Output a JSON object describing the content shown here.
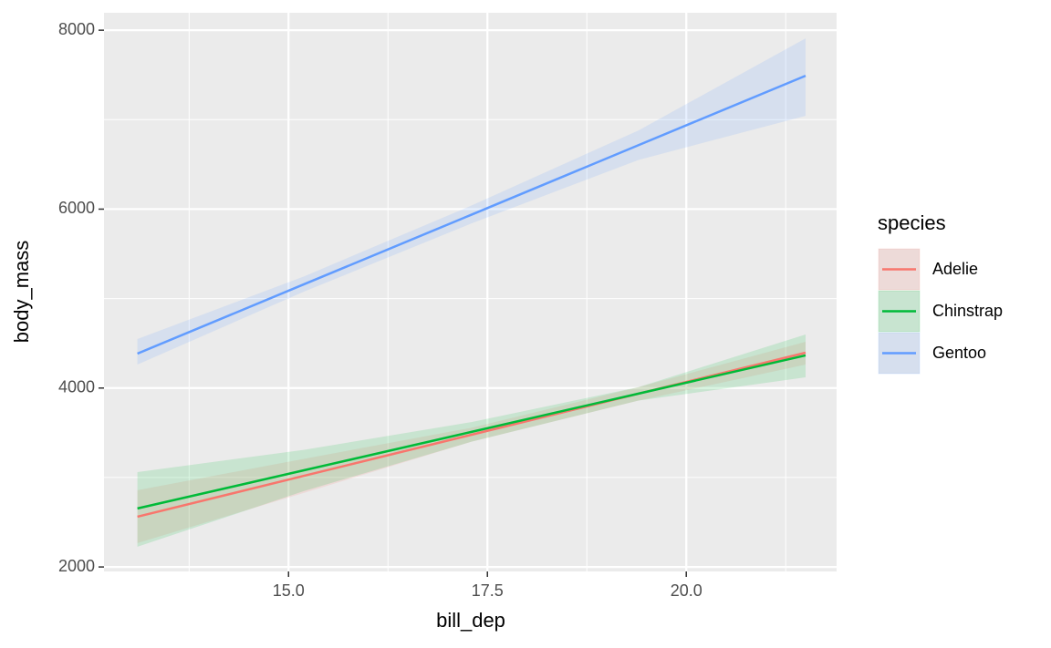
{
  "chart_data": {
    "type": "line",
    "x_label": "bill_dep",
    "y_label": "body_mass",
    "legend_title": "species",
    "legend_position": "right",
    "x": [
      13.1,
      15.2,
      17.3,
      19.4,
      21.5
    ],
    "series": [
      {
        "name": "Adelie",
        "color": "#F8766D",
        "values": [
          2562,
          3020,
          3478,
          3937,
          4395
        ],
        "lower": [
          2267,
          2830,
          3400,
          3860,
          4263
        ],
        "upper": [
          2858,
          3210,
          3556,
          4010,
          4517
        ]
      },
      {
        "name": "Chinstrap",
        "color": "#00BA38",
        "values": [
          2654,
          3082,
          3510,
          3938,
          4365
        ],
        "lower": [
          2226,
          2850,
          3400,
          3860,
          4120
        ],
        "upper": [
          3061,
          3310,
          3620,
          4010,
          4599
        ]
      },
      {
        "name": "Gentoo",
        "color": "#619CFF",
        "values": [
          4385,
          5162,
          5938,
          6715,
          7491
        ],
        "lower": [
          4263,
          5080,
          5840,
          6550,
          7043
        ],
        "upper": [
          4548,
          5250,
          6040,
          6880,
          7908
        ]
      }
    ],
    "xlim": [
      12.68,
      21.89
    ],
    "ylim": [
      1950,
      8195
    ],
    "xticks": [
      {
        "value": 15,
        "label": "15.0"
      },
      {
        "value": 17.5,
        "label": "17.5"
      },
      {
        "value": 20,
        "label": "20.0"
      }
    ],
    "yticks": [
      2000,
      4000,
      6000,
      8000
    ],
    "x_minor_breaks": [
      13.75,
      16.25,
      18.75,
      21.25
    ],
    "y_minor_breaks": [
      3000,
      5000,
      7000
    ],
    "grid": true
  }
}
